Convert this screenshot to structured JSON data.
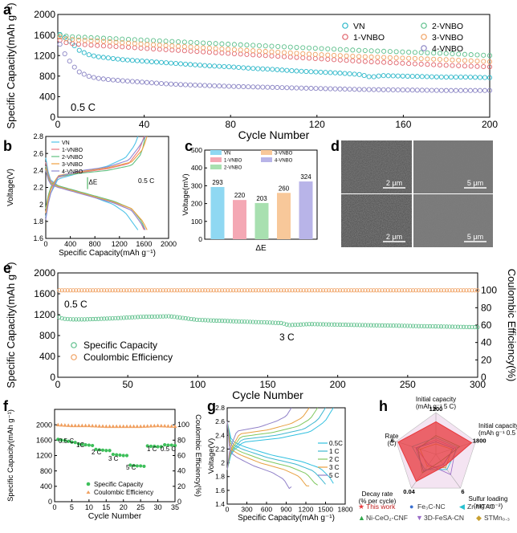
{
  "panel_letters": [
    "a",
    "b",
    "c",
    "d",
    "e",
    "f",
    "g",
    "h"
  ],
  "chart_data": [
    {
      "id": "a",
      "type": "scatter",
      "condition": "0.5 C",
      "xlabel": "Cycle Number",
      "ylabel": "Specific Capacity(mAh g⁻¹)",
      "xlim": [
        0,
        200
      ],
      "ylim": [
        0,
        2000
      ],
      "xticks": [
        0,
        40,
        80,
        120,
        160,
        200
      ],
      "yticks": [
        0,
        400,
        800,
        1200,
        1600,
        2000
      ],
      "legend_position": "top-right",
      "series": [
        {
          "name": "VN",
          "color": "#2bb7c9",
          "x": [
            1,
            2,
            4,
            6,
            8,
            10,
            14,
            18,
            24,
            30,
            40,
            50,
            60,
            70,
            80,
            90,
            100,
            110,
            120,
            130,
            140,
            145,
            150,
            160,
            170,
            180,
            190,
            200
          ],
          "y": [
            1610,
            1580,
            1530,
            1460,
            1380,
            1300,
            1220,
            1180,
            1150,
            1120,
            1090,
            1060,
            1030,
            1000,
            980,
            950,
            930,
            900,
            880,
            860,
            830,
            780,
            810,
            800,
            790,
            780,
            780,
            770
          ]
        },
        {
          "name": "1-VNBO",
          "color": "#e0636b",
          "x": [
            1,
            2,
            5,
            10,
            20,
            30,
            40,
            60,
            80,
            100,
            120,
            140,
            160,
            180,
            200
          ],
          "y": [
            1500,
            1470,
            1440,
            1420,
            1390,
            1370,
            1340,
            1290,
            1240,
            1190,
            1140,
            1090,
            1050,
            1010,
            980
          ]
        },
        {
          "name": "2-VNBO",
          "color": "#5cbf8a",
          "x": [
            1,
            2,
            5,
            10,
            20,
            30,
            40,
            60,
            80,
            100,
            120,
            140,
            160,
            180,
            200
          ],
          "y": [
            1600,
            1590,
            1570,
            1560,
            1540,
            1520,
            1500,
            1460,
            1420,
            1380,
            1340,
            1300,
            1270,
            1240,
            1200
          ]
        },
        {
          "name": "3-VNBO",
          "color": "#f0a060",
          "x": [
            1,
            2,
            5,
            10,
            20,
            30,
            40,
            60,
            80,
            100,
            120,
            140,
            160,
            180,
            200
          ],
          "y": [
            1560,
            1540,
            1520,
            1500,
            1480,
            1450,
            1420,
            1370,
            1320,
            1270,
            1220,
            1180,
            1150,
            1120,
            1080
          ]
        },
        {
          "name": "4-VNBO",
          "color": "#8a84c4",
          "x": [
            1,
            2,
            4,
            6,
            8,
            10,
            14,
            18,
            24,
            30,
            40,
            50,
            60,
            80,
            100,
            120,
            140,
            160,
            180,
            200
          ],
          "y": [
            1420,
            1320,
            1180,
            1060,
            960,
            880,
            800,
            760,
            730,
            710,
            680,
            650,
            630,
            600,
            580,
            560,
            540,
            530,
            520,
            520
          ]
        }
      ]
    },
    {
      "id": "b",
      "type": "line",
      "condition": "0.5 C",
      "annotation": "ΔE",
      "xlabel": "Specific Capacity(mAh g⁻¹)",
      "ylabel": "Voltage(V)",
      "xlim": [
        0,
        2000
      ],
      "ylim": [
        1.6,
        2.8
      ],
      "xticks": [
        0,
        400,
        800,
        1200,
        1600,
        2000
      ],
      "yticks": [
        1.6,
        1.8,
        2.0,
        2.2,
        2.4,
        2.6,
        2.8
      ],
      "legend_position": "top-left",
      "series": [
        {
          "name": "VN",
          "color": "#4fc3e8",
          "discharge": {
            "x": [
              0,
              60,
              200,
              500,
              800,
              1100,
              1300,
              1450,
              1500
            ],
            "y": [
              2.55,
              2.3,
              2.22,
              2.15,
              2.08,
              2.0,
              1.9,
              1.75,
              1.7
            ]
          },
          "charge": {
            "x": [
              0,
              60,
              200,
              600,
              1000,
              1300,
              1450,
              1500
            ],
            "y": [
              1.85,
              2.1,
              2.3,
              2.38,
              2.45,
              2.55,
              2.7,
              2.8
            ]
          }
        },
        {
          "name": "1-VNBO",
          "color": "#e87480",
          "discharge": {
            "x": [
              0,
              60,
              200,
              500,
              800,
              1100,
              1400,
              1550,
              1600
            ],
            "y": [
              2.5,
              2.28,
              2.22,
              2.15,
              2.08,
              2.02,
              1.93,
              1.78,
              1.7
            ]
          },
          "charge": {
            "x": [
              0,
              60,
              200,
              600,
              1000,
              1350,
              1530,
              1600
            ],
            "y": [
              1.9,
              2.15,
              2.32,
              2.38,
              2.42,
              2.48,
              2.65,
              2.8
            ]
          }
        },
        {
          "name": "2-VNBO",
          "color": "#60c080",
          "discharge": {
            "x": [
              0,
              60,
              200,
              500,
              800,
              1100,
              1400,
              1560,
              1620
            ],
            "y": [
              2.45,
              2.26,
              2.22,
              2.16,
              2.1,
              2.04,
              1.95,
              1.8,
              1.7
            ]
          },
          "charge": {
            "x": [
              0,
              60,
              200,
              600,
              1000,
              1400,
              1560,
              1620
            ],
            "y": [
              1.95,
              2.18,
              2.33,
              2.37,
              2.4,
              2.46,
              2.6,
              2.8
            ]
          }
        },
        {
          "name": "3-VNBO",
          "color": "#f0a040",
          "discharge": {
            "x": [
              0,
              60,
              200,
              500,
              800,
              1100,
              1400,
              1580,
              1650
            ],
            "y": [
              2.42,
              2.25,
              2.21,
              2.15,
              2.09,
              2.03,
              1.95,
              1.8,
              1.7
            ]
          },
          "charge": {
            "x": [
              0,
              60,
              200,
              600,
              1000,
              1400,
              1580,
              1650
            ],
            "y": [
              1.9,
              2.15,
              2.34,
              2.39,
              2.43,
              2.5,
              2.65,
              2.8
            ]
          }
        },
        {
          "name": "4-VNBO",
          "color": "#9088d0",
          "discharge": {
            "x": [
              0,
              60,
              200,
              500,
              800,
              1100,
              1400,
              1550,
              1620
            ],
            "y": [
              2.4,
              2.24,
              2.2,
              2.14,
              2.08,
              2.02,
              1.93,
              1.78,
              1.7
            ]
          },
          "charge": {
            "x": [
              0,
              60,
              200,
              600,
              1000,
              1350,
              1520,
              1620
            ],
            "y": [
              1.82,
              2.1,
              2.33,
              2.4,
              2.44,
              2.52,
              2.68,
              2.8
            ]
          }
        }
      ]
    },
    {
      "id": "c",
      "type": "bar",
      "xlabel": "ΔE",
      "ylabel": "Voltage(mV)",
      "ylim": [
        0,
        500
      ],
      "yticks": [
        0,
        100,
        200,
        300,
        400,
        500
      ],
      "legend_position": "top",
      "categories": [
        "VN",
        "1-VNBO",
        "2-VNBO",
        "3-VNBO",
        "4-VNBO"
      ],
      "values": [
        293,
        220,
        203,
        260,
        324
      ],
      "value_labels": [
        "293",
        "220",
        "203",
        "260",
        "324"
      ],
      "colors": [
        "#8fd8f2",
        "#f4a8b4",
        "#a8e0b0",
        "#f8c89a",
        "#b8b4e8"
      ]
    },
    {
      "id": "e",
      "type": "scatter",
      "rate_labels": [
        "0.5 C",
        "3 C"
      ],
      "xlabel": "Cycle Number",
      "ylabel": "Specific Capacity(mAh g⁻¹)",
      "y2label": "Coulombic Efficiency(%)",
      "xlim": [
        0,
        300
      ],
      "ylim": [
        0,
        2000
      ],
      "y2lim": [
        0,
        120
      ],
      "xticks": [
        0,
        50,
        100,
        150,
        200,
        250,
        300
      ],
      "yticks": [
        0,
        400,
        800,
        1200,
        1600,
        2000
      ],
      "y2ticks": [
        0,
        20,
        40,
        60,
        80,
        100
      ],
      "legend_position": "bottom-left",
      "series": [
        {
          "name": "Specific Capacity",
          "color": "#5cbf8a",
          "x": [
            1,
            3,
            5,
            10,
            20,
            40,
            60,
            80,
            100,
            120,
            140,
            160,
            165,
            180,
            200,
            220,
            240,
            260,
            280,
            300
          ],
          "y": [
            1150,
            1130,
            1120,
            1110,
            1110,
            1130,
            1160,
            1170,
            1100,
            1080,
            1060,
            1040,
            1000,
            1020,
            1010,
            1000,
            990,
            980,
            970,
            960
          ]
        },
        {
          "name": "Coulombic Efficiency",
          "color": "#f0a060",
          "axis": "right",
          "x": [
            1,
            300
          ],
          "y": [
            100,
            100
          ]
        }
      ]
    },
    {
      "id": "f",
      "type": "scatter",
      "xlabel": "Cycle Number",
      "ylabel": "Specific Capacity(mAh g⁻¹)",
      "y2label": "Coulombic Efficiency(%)",
      "xlim": [
        0,
        35
      ],
      "ylim": [
        0,
        2400
      ],
      "y2lim": [
        0,
        120
      ],
      "xticks": [
        0,
        5,
        10,
        15,
        20,
        25,
        30,
        35
      ],
      "yticks": [
        0,
        400,
        800,
        1200,
        1600,
        2000
      ],
      "y2ticks": [
        0,
        20,
        40,
        60,
        80,
        100
      ],
      "rate_labels": [
        "0.5 C",
        "1C",
        "2 C",
        "3 C",
        "5 C",
        "1 C",
        "0.5 C"
      ],
      "legend_position": "bottom",
      "series": [
        {
          "name": "Specific Capacity",
          "color": "#3dbf5a",
          "x": [
            1,
            2,
            3,
            4,
            5,
            6,
            7,
            8,
            9,
            10,
            11,
            12,
            13,
            14,
            15,
            16,
            17,
            18,
            19,
            20,
            21,
            22,
            23,
            24,
            25,
            26,
            27,
            28,
            29,
            30,
            31,
            32,
            33,
            34,
            35
          ],
          "y": [
            1620,
            1600,
            1590,
            1570,
            1550,
            1540,
            1500,
            1490,
            1480,
            1470,
            1460,
            1360,
            1350,
            1340,
            1330,
            1330,
            1230,
            1220,
            1210,
            1200,
            1200,
            950,
            940,
            930,
            930,
            920,
            1450,
            1440,
            1440,
            1430,
            1430,
            1480,
            1470,
            1470,
            1460
          ]
        },
        {
          "name": "Coulombic Efficiency",
          "color": "#f0a060",
          "axis": "right",
          "x": [
            1,
            5,
            10,
            15,
            20,
            25,
            30,
            35
          ],
          "y": [
            100,
            99,
            99,
            98,
            98,
            98,
            99,
            98
          ]
        }
      ]
    },
    {
      "id": "g",
      "type": "line",
      "xlabel": "Specific Capacity(mAh g⁻¹)",
      "ylabel": "Voltage(V)",
      "xlim": [
        0,
        1800
      ],
      "ylim": [
        1.4,
        2.8
      ],
      "xticks": [
        0,
        300,
        600,
        900,
        1200,
        1500,
        1800
      ],
      "yticks": [
        1.4,
        1.6,
        1.8,
        2.0,
        2.2,
        2.4,
        2.6,
        2.8
      ],
      "legend_position": "right",
      "series": [
        {
          "name": "0.5C",
          "color": "#30c0e0",
          "capacity": 1620
        },
        {
          "name": "1 C",
          "color": "#40b8d0",
          "capacity": 1500
        },
        {
          "name": "2 C",
          "color": "#80c860",
          "capacity": 1380
        },
        {
          "name": "3 C",
          "color": "#e8a040",
          "capacity": 1250
        },
        {
          "name": "5 C",
          "color": "#9080c8",
          "capacity": 980
        }
      ]
    },
    {
      "id": "h",
      "type": "radar",
      "axes": [
        {
          "label": "Initial capacity (mAh g⁻¹ 5 C)",
          "max_label": "1200"
        },
        {
          "label": "Initial capacity (mAh g⁻¹ 0.5 C)",
          "max_label": "1800"
        },
        {
          "label": "Sulfur loading (mg cm⁻²)",
          "max_label": "6"
        },
        {
          "label": "Decay rate (% per cycle)",
          "max_label": "0.04"
        },
        {
          "label": "Rate (C)",
          "max_label": "6"
        }
      ],
      "series": [
        {
          "name": "This work",
          "color": "#e8383c",
          "marker": "★",
          "values": [
            0.78,
            0.9,
            0.35,
            0.8,
            0.95
          ]
        },
        {
          "name": "Fe₃C-NC",
          "color": "#3a6fd0",
          "marker": "●",
          "values": [
            0.3,
            0.45,
            0.3,
            0.5,
            0.5
          ]
        },
        {
          "name": "Zr-MTAC",
          "color": "#26c0d0",
          "marker": "◀",
          "values": [
            0.4,
            0.55,
            0.45,
            0.45,
            0.6
          ]
        },
        {
          "name": "Ni-CeO₂-CNF",
          "color": "#2ea84a",
          "marker": "▲",
          "values": [
            0.45,
            0.6,
            0.2,
            0.55,
            0.45
          ]
        },
        {
          "name": "3D-FeSA-CN",
          "color": "#9a6cc8",
          "marker": "▼",
          "values": [
            0.35,
            0.5,
            0.6,
            0.3,
            0.5
          ]
        },
        {
          "name": "STMn₀.₃",
          "color": "#c8a030",
          "marker": "◆",
          "values": [
            0.25,
            0.4,
            0.4,
            0.35,
            0.4
          ]
        }
      ]
    }
  ],
  "sem_images": {
    "scale_bars": [
      "2 μm",
      "5 μm",
      "2 μm",
      "5 μm"
    ]
  }
}
